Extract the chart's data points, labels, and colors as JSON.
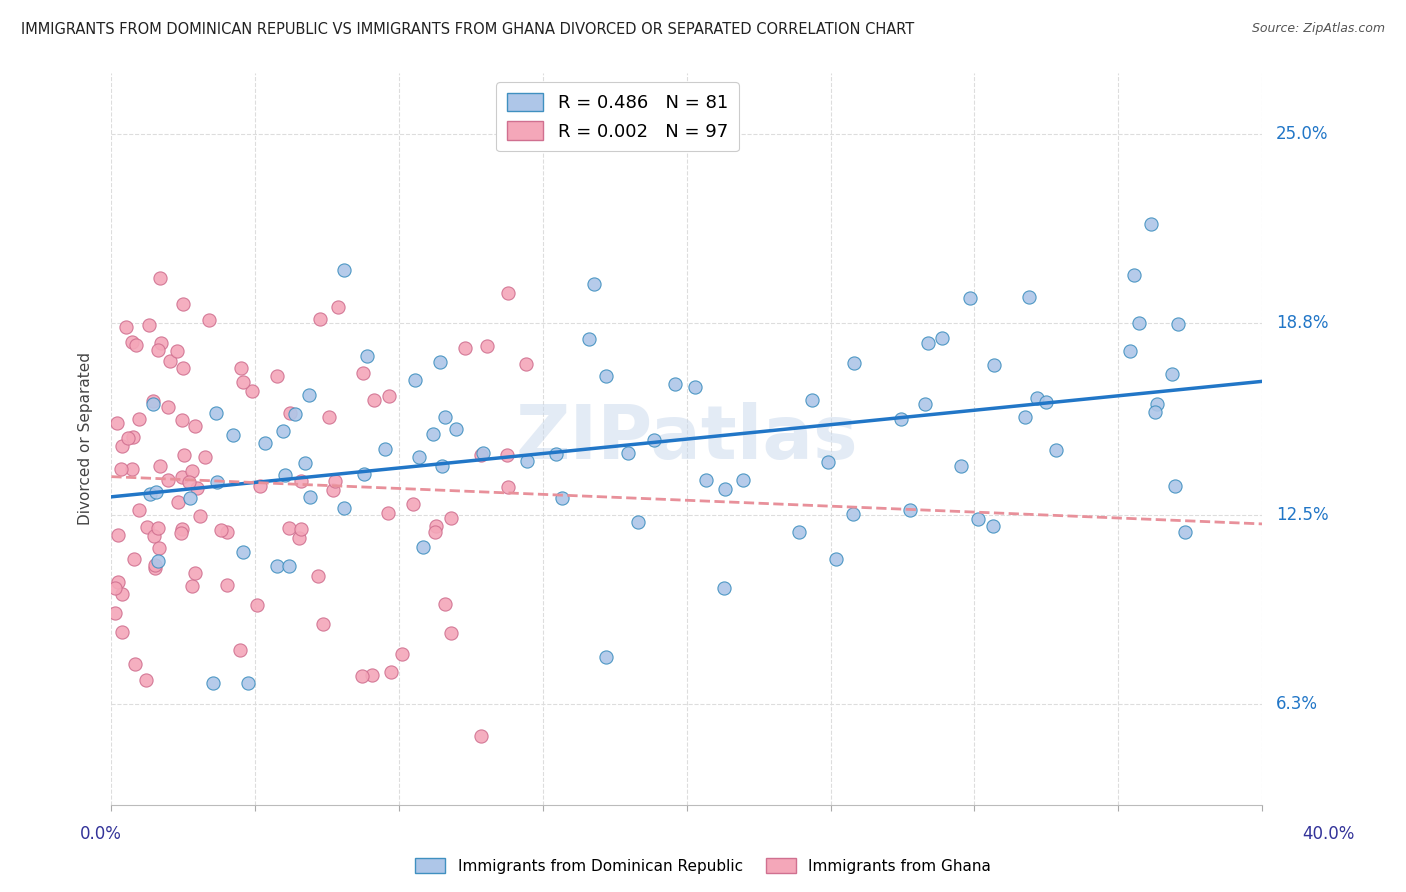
{
  "title": "IMMIGRANTS FROM DOMINICAN REPUBLIC VS IMMIGRANTS FROM GHANA DIVORCED OR SEPARATED CORRELATION CHART",
  "source": "Source: ZipAtlas.com",
  "ylabel": "Divorced or Separated",
  "ytick_labels": [
    "6.3%",
    "12.5%",
    "18.8%",
    "25.0%"
  ],
  "ytick_values": [
    0.063,
    0.125,
    0.188,
    0.25
  ],
  "xlim": [
    0.0,
    0.4
  ],
  "ylim": [
    0.03,
    0.27
  ],
  "legend_entry1": "R = 0.486   N = 81",
  "legend_entry2": "R = 0.002   N = 97",
  "color_blue": "#AEC6E8",
  "color_pink": "#F4A7B9",
  "trendline_blue": "#2176C7",
  "trendline_pink": "#E8909A",
  "watermark": "ZIPatlas",
  "seed_blue": 17,
  "seed_pink": 99
}
